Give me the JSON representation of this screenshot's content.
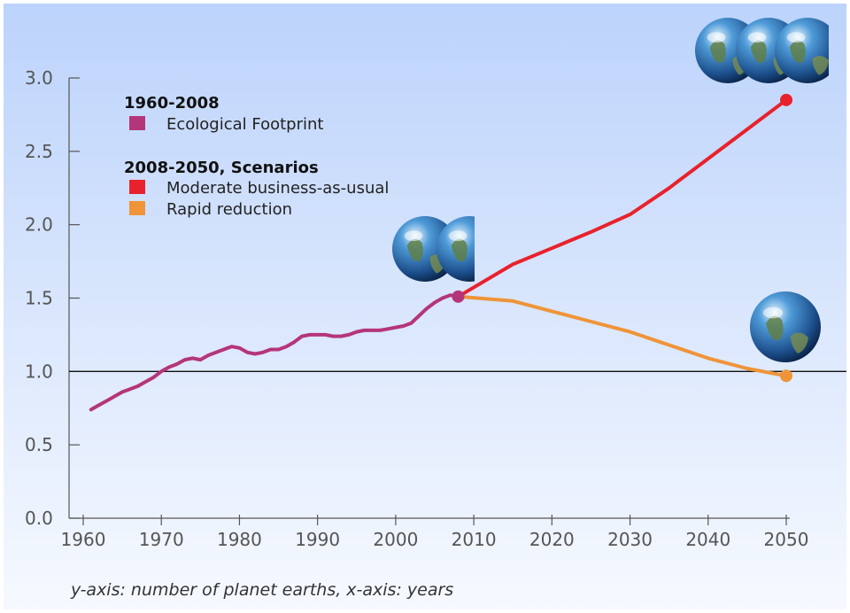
{
  "chart_data": {
    "type": "line",
    "ylim": [
      0,
      3.0
    ],
    "xlim": [
      1960,
      2050
    ],
    "x_ticks": [
      1960,
      1970,
      1980,
      1990,
      2000,
      2010,
      2020,
      2030,
      2040,
      2050
    ],
    "y_ticks": [
      "0.0",
      "0.5",
      "1.0",
      "1.5",
      "2.0",
      "2.5",
      "3.0"
    ],
    "reference_line_y": 1.0,
    "caption": "y-axis: number of planet earths, x-axis: years",
    "legend": {
      "group1_title": "1960-2008",
      "group1_items": [
        "Ecological Footprint"
      ],
      "group2_title": "2008-2050, Scenarios",
      "group2_items": [
        "Moderate business-as-usual",
        "Rapid reduction"
      ]
    },
    "series": [
      {
        "name": "Ecological Footprint",
        "color": "#b5357a",
        "x": [
          1961,
          1962,
          1963,
          1964,
          1965,
          1966,
          1967,
          1968,
          1969,
          1970,
          1971,
          1972,
          1973,
          1974,
          1975,
          1976,
          1977,
          1978,
          1979,
          1980,
          1981,
          1982,
          1983,
          1984,
          1985,
          1986,
          1987,
          1988,
          1989,
          1990,
          1991,
          1992,
          1993,
          1994,
          1995,
          1996,
          1997,
          1998,
          1999,
          2000,
          2001,
          2002,
          2003,
          2004,
          2005,
          2006,
          2007,
          2008
        ],
        "values": [
          0.74,
          0.77,
          0.8,
          0.83,
          0.86,
          0.88,
          0.9,
          0.93,
          0.96,
          1.0,
          1.03,
          1.05,
          1.08,
          1.09,
          1.08,
          1.11,
          1.13,
          1.15,
          1.17,
          1.16,
          1.13,
          1.12,
          1.13,
          1.15,
          1.15,
          1.17,
          1.2,
          1.24,
          1.25,
          1.25,
          1.25,
          1.24,
          1.24,
          1.25,
          1.27,
          1.28,
          1.28,
          1.28,
          1.29,
          1.3,
          1.31,
          1.33,
          1.38,
          1.43,
          1.47,
          1.5,
          1.52,
          1.51
        ]
      },
      {
        "name": "Moderate business-as-usual",
        "color": "#e8222c",
        "x": [
          2008,
          2015,
          2020,
          2025,
          2030,
          2035,
          2040,
          2045,
          2050
        ],
        "values": [
          1.51,
          1.73,
          1.84,
          1.95,
          2.07,
          2.25,
          2.45,
          2.65,
          2.85
        ]
      },
      {
        "name": "Rapid reduction",
        "color": "#ef9438",
        "x": [
          2008,
          2015,
          2020,
          2025,
          2030,
          2035,
          2040,
          2045,
          2050
        ],
        "values": [
          1.51,
          1.48,
          1.41,
          1.34,
          1.27,
          1.18,
          1.09,
          1.02,
          0.97
        ]
      }
    ],
    "earth_icons": [
      {
        "x": 2008,
        "count": 2
      },
      {
        "x": 2050,
        "count": 3
      },
      {
        "x": 2050,
        "count": 1
      }
    ]
  }
}
